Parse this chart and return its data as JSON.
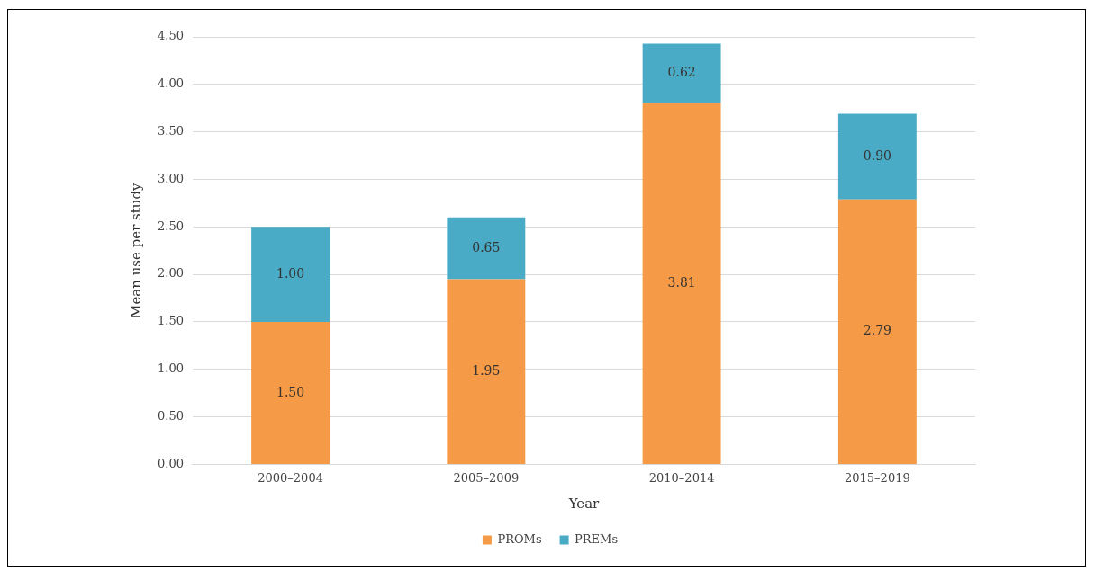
{
  "chart_data": {
    "type": "bar",
    "stacked": true,
    "xlabel": "Year",
    "ylabel": "Mean use per study",
    "categories": [
      "2000–2004",
      "2005–2009",
      "2010–2014",
      "2015–2019"
    ],
    "series": [
      {
        "name": "PROMs",
        "color": "#f59a46",
        "values": [
          1.5,
          1.95,
          3.81,
          2.79
        ],
        "value_labels": [
          "1.50",
          "1.95",
          "3.81",
          "2.79"
        ]
      },
      {
        "name": "PREMs",
        "color": "#4aabc6",
        "values": [
          1.0,
          0.65,
          0.62,
          0.9
        ],
        "value_labels": [
          "1.00",
          "0.65",
          "0.62",
          "0.90"
        ]
      }
    ],
    "ylim": [
      0,
      4.5
    ],
    "yticks": [
      {
        "value": 0,
        "label": "0.00"
      },
      {
        "value": 0.5,
        "label": "0.50"
      },
      {
        "value": 1,
        "label": "1.00"
      },
      {
        "value": 1.5,
        "label": "1.50"
      },
      {
        "value": 2,
        "label": "2.00"
      },
      {
        "value": 2.5,
        "label": "2.50"
      },
      {
        "value": 3,
        "label": "3.00"
      },
      {
        "value": 3.5,
        "label": "3.50"
      },
      {
        "value": 4,
        "label": "4.00"
      },
      {
        "value": 4.5,
        "label": "4.50"
      }
    ],
    "grid": "y",
    "legend": "bottom"
  }
}
